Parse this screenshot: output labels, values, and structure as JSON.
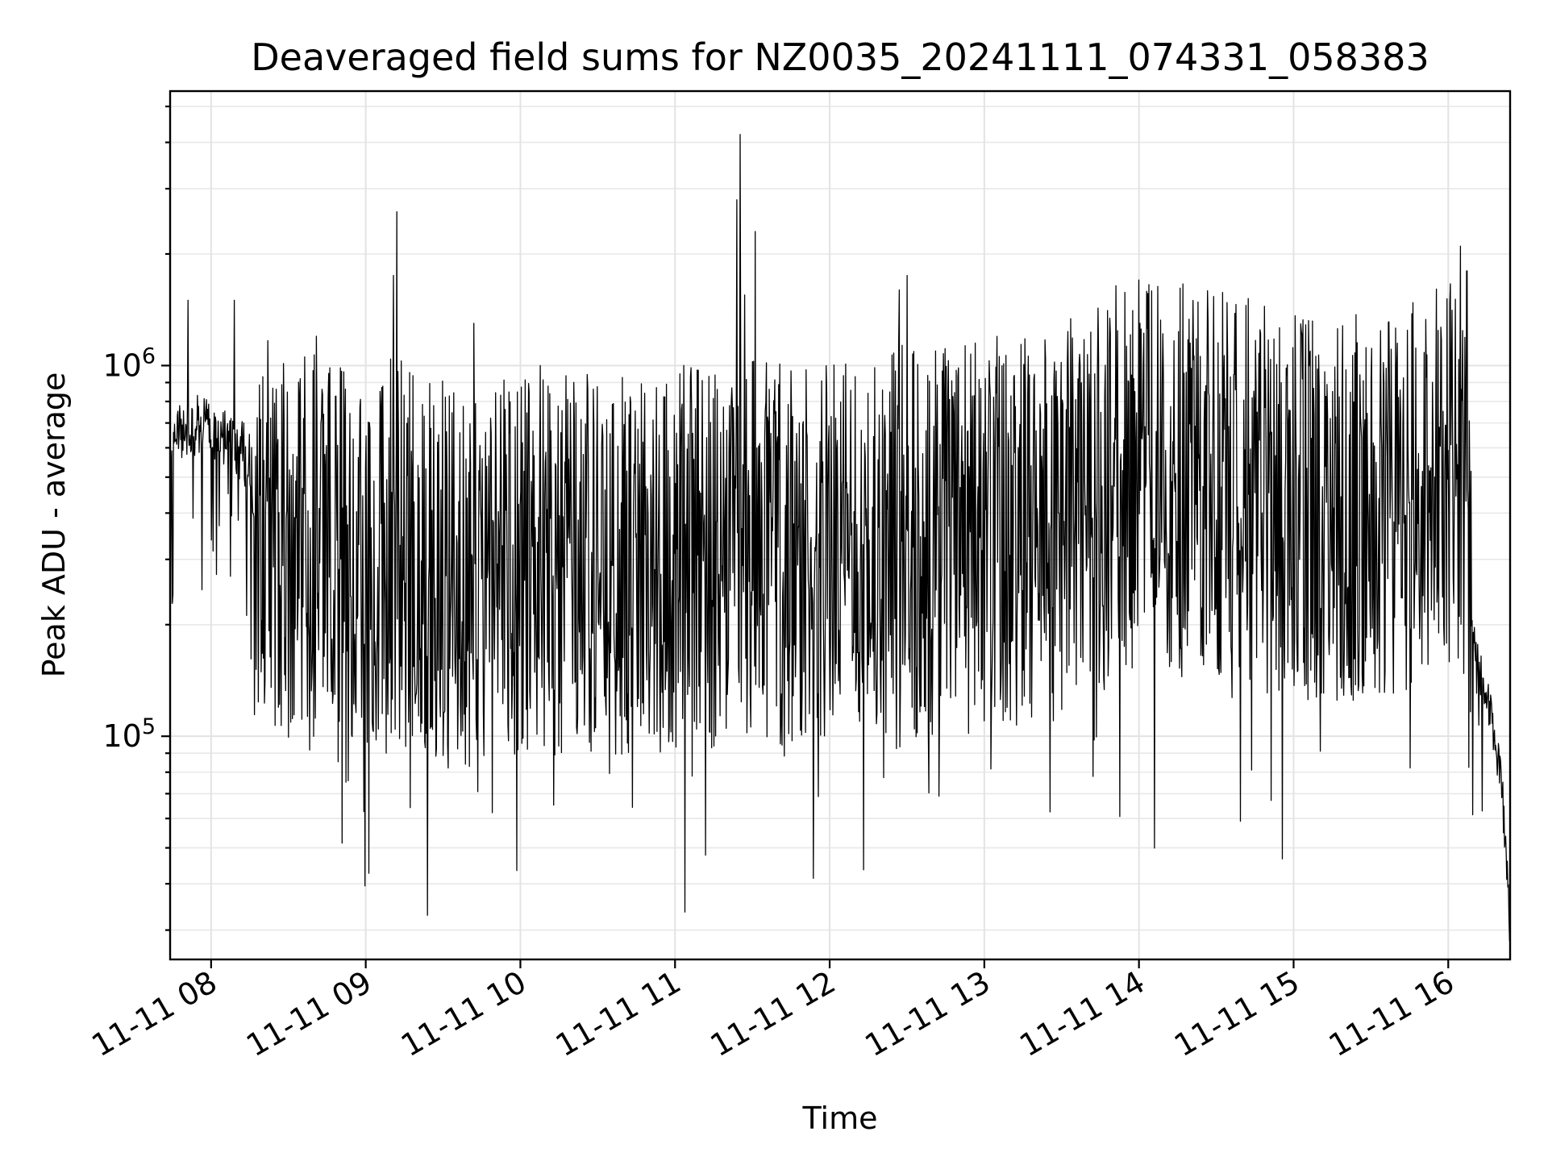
{
  "chart_data": {
    "type": "line",
    "title": "Deaveraged field sums for NZ0035_20241111_074331_058383",
    "xlabel": "Time",
    "ylabel": "Peak ADU - average",
    "x_range_hours": [
      7.735,
      16.4
    ],
    "y_scale": "log",
    "ylim": [
      25000,
      5500000
    ],
    "grid": true,
    "x_ticks": [
      {
        "value": 8,
        "label": "11-11 08"
      },
      {
        "value": 9,
        "label": "11-11 09"
      },
      {
        "value": 10,
        "label": "11-11 10"
      },
      {
        "value": 11,
        "label": "11-11 11"
      },
      {
        "value": 12,
        "label": "11-11 12"
      },
      {
        "value": 13,
        "label": "11-11 13"
      },
      {
        "value": 14,
        "label": "11-11 14"
      },
      {
        "value": 15,
        "label": "11-11 15"
      },
      {
        "value": 16,
        "label": "11-11 16"
      }
    ],
    "y_ticks": [
      {
        "value": 100000,
        "base": "10",
        "exp": "5"
      },
      {
        "value": 1000000,
        "base": "10",
        "exp": "6"
      }
    ],
    "series": [
      {
        "color": "#000000",
        "description_points": {
          "x": [
            7.74,
            7.8,
            7.88,
            7.95,
            8.02,
            8.1,
            8.18,
            8.25,
            8.3,
            8.4,
            8.5,
            8.6,
            8.7,
            8.8,
            8.9,
            9.0,
            9.1,
            9.2,
            9.3,
            9.4,
            9.5,
            9.6,
            9.7,
            9.8,
            9.9,
            10.0,
            10.1,
            10.2,
            10.3,
            10.4,
            10.5,
            10.6,
            10.7,
            10.8,
            10.9,
            11.0,
            11.1,
            11.2,
            11.3,
            11.4,
            11.42,
            11.5,
            11.6,
            11.7,
            11.8,
            11.9,
            12.0,
            12.1,
            12.2,
            12.3,
            12.4,
            12.45,
            12.5,
            12.6,
            12.7,
            12.8,
            12.9,
            13.0,
            13.1,
            13.2,
            13.3,
            13.4,
            13.5,
            13.6,
            13.7,
            13.8,
            13.9,
            14.0,
            14.1,
            14.2,
            14.3,
            14.4,
            14.5,
            14.6,
            14.7,
            14.8,
            14.9,
            15.0,
            15.1,
            15.2,
            15.3,
            15.4,
            15.5,
            15.6,
            15.7,
            15.8,
            15.9,
            16.0,
            16.05,
            16.1,
            16.15,
            16.2,
            16.25,
            16.3,
            16.35,
            16.4
          ],
          "y": [
            600000,
            650000,
            700000,
            680000,
            650000,
            620000,
            600000,
            550000,
            400000,
            350000,
            330000,
            320000,
            320000,
            300000,
            300000,
            290000,
            300000,
            320000,
            300000,
            280000,
            280000,
            270000,
            280000,
            270000,
            280000,
            280000,
            290000,
            280000,
            290000,
            280000,
            290000,
            290000,
            280000,
            290000,
            290000,
            300000,
            310000,
            300000,
            310000,
            320000,
            330000,
            310000,
            320000,
            310000,
            320000,
            320000,
            330000,
            330000,
            320000,
            330000,
            340000,
            360000,
            330000,
            330000,
            340000,
            340000,
            350000,
            360000,
            370000,
            360000,
            350000,
            360000,
            380000,
            420000,
            450000,
            480000,
            500000,
            520000,
            520000,
            500000,
            500000,
            490000,
            480000,
            470000,
            460000,
            450000,
            440000,
            430000,
            420000,
            420000,
            410000,
            420000,
            420000,
            430000,
            440000,
            450000,
            480000,
            520000,
            560000,
            500000,
            200000,
            150000,
            130000,
            100000,
            70000,
            30000
          ]
        }
      }
    ]
  }
}
